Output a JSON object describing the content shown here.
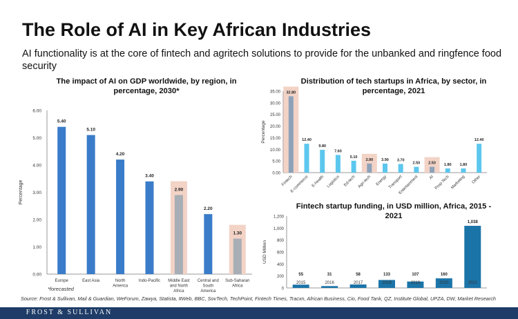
{
  "slide": {
    "title": "The Role of AI in Key African Industries",
    "subtitle": "AI functionality  is at the core of fintech and agritech solutions to provide for the unbanked and ringfence food security",
    "source": "Source: Frost & Sullivan, Mail & Guardian, WeForum, Zawya, Statista, ItWeb, BBC, SovTech, TechPoint, Fintech Times, Tracxn, African Business, Cio, Food Tank, QZ, Institute Global, UPZA, DW, Market Research",
    "footer_brand": "FROST & SULLIVAN"
  },
  "colors": {
    "bar_blue": "#3a7cc9",
    "bar_gray": "#a8aeb5",
    "highlight_bg": "#f2d3c6",
    "startup_blue": "#5cc7ee",
    "startup_gray": "#8da2b8",
    "funding_blue": "#1b74a8",
    "footer_bg": "#1e3c67"
  },
  "chart_data": [
    {
      "type": "bar",
      "title": "The impact of AI on GDP worldwide, by region, in percentage, 2030*",
      "categories": [
        "Europe",
        "East Asia",
        "North America",
        "Indo-Pacific",
        "Middle East and North Africa",
        "Central and South America",
        "Sub-Saharan Africa"
      ],
      "values": [
        5.4,
        5.1,
        4.2,
        3.4,
        2.9,
        2.2,
        1.3
      ],
      "value_labels": [
        "5.40",
        "5.10",
        "4.20",
        "3.40",
        "2.90",
        "2.20",
        "1.30"
      ],
      "highlighted": [
        "Middle East and North Africa",
        "Sub-Saharan Africa"
      ],
      "ylabel": "Percentage",
      "ylim": [
        0,
        6
      ],
      "yticks": [
        "0.00",
        "1.00",
        "2.00",
        "3.00",
        "4.00",
        "5.00",
        "6.00"
      ],
      "annotation": "*forecasted"
    },
    {
      "type": "bar",
      "title": "Distribution of tech startups in Africa, by sector, in percentage, 2021",
      "categories": [
        "Fintech",
        "E-commerce",
        "E-health",
        "Logistics",
        "Ed-tech",
        "Agri-tech",
        "Energy",
        "Transport",
        "Entertainment",
        "AI",
        "Prop-Tech",
        "Marketing",
        "Other"
      ],
      "values": [
        32.8,
        12.4,
        9.8,
        7.6,
        5.1,
        3.9,
        3.9,
        3.7,
        2.5,
        2.5,
        1.8,
        1.8,
        12.4
      ],
      "value_labels": [
        "32.80",
        "12.40",
        "9.80",
        "7.60",
        "5.10",
        "3.90",
        "3.90",
        "3.70",
        "2.50",
        "2.50",
        "1.80",
        "1.80",
        "12.40"
      ],
      "highlighted": [
        "Fintech",
        "Agri-tech",
        "AI"
      ],
      "ylabel": "Percentage",
      "ylim": [
        0,
        35
      ],
      "yticks": [
        "0.00",
        "5.00",
        "10.00",
        "15.00",
        "20.00",
        "25.00",
        "30.00",
        "35.00"
      ]
    },
    {
      "type": "bar",
      "title": "Fintech startup funding, in USD million, Africa, 2015 - 2021",
      "categories": [
        "2015",
        "2016",
        "2017",
        "2018",
        "2019",
        "2020",
        "2021"
      ],
      "values": [
        55,
        31,
        58,
        133,
        107,
        160,
        1038
      ],
      "value_labels": [
        "55",
        "31",
        "58",
        "133",
        "107",
        "160",
        "1,038"
      ],
      "ylabel": "USD Million",
      "ylim": [
        0,
        1200
      ],
      "yticks": [
        "0",
        "200",
        "400",
        "600",
        "800",
        "1,000",
        "1,200"
      ]
    }
  ]
}
